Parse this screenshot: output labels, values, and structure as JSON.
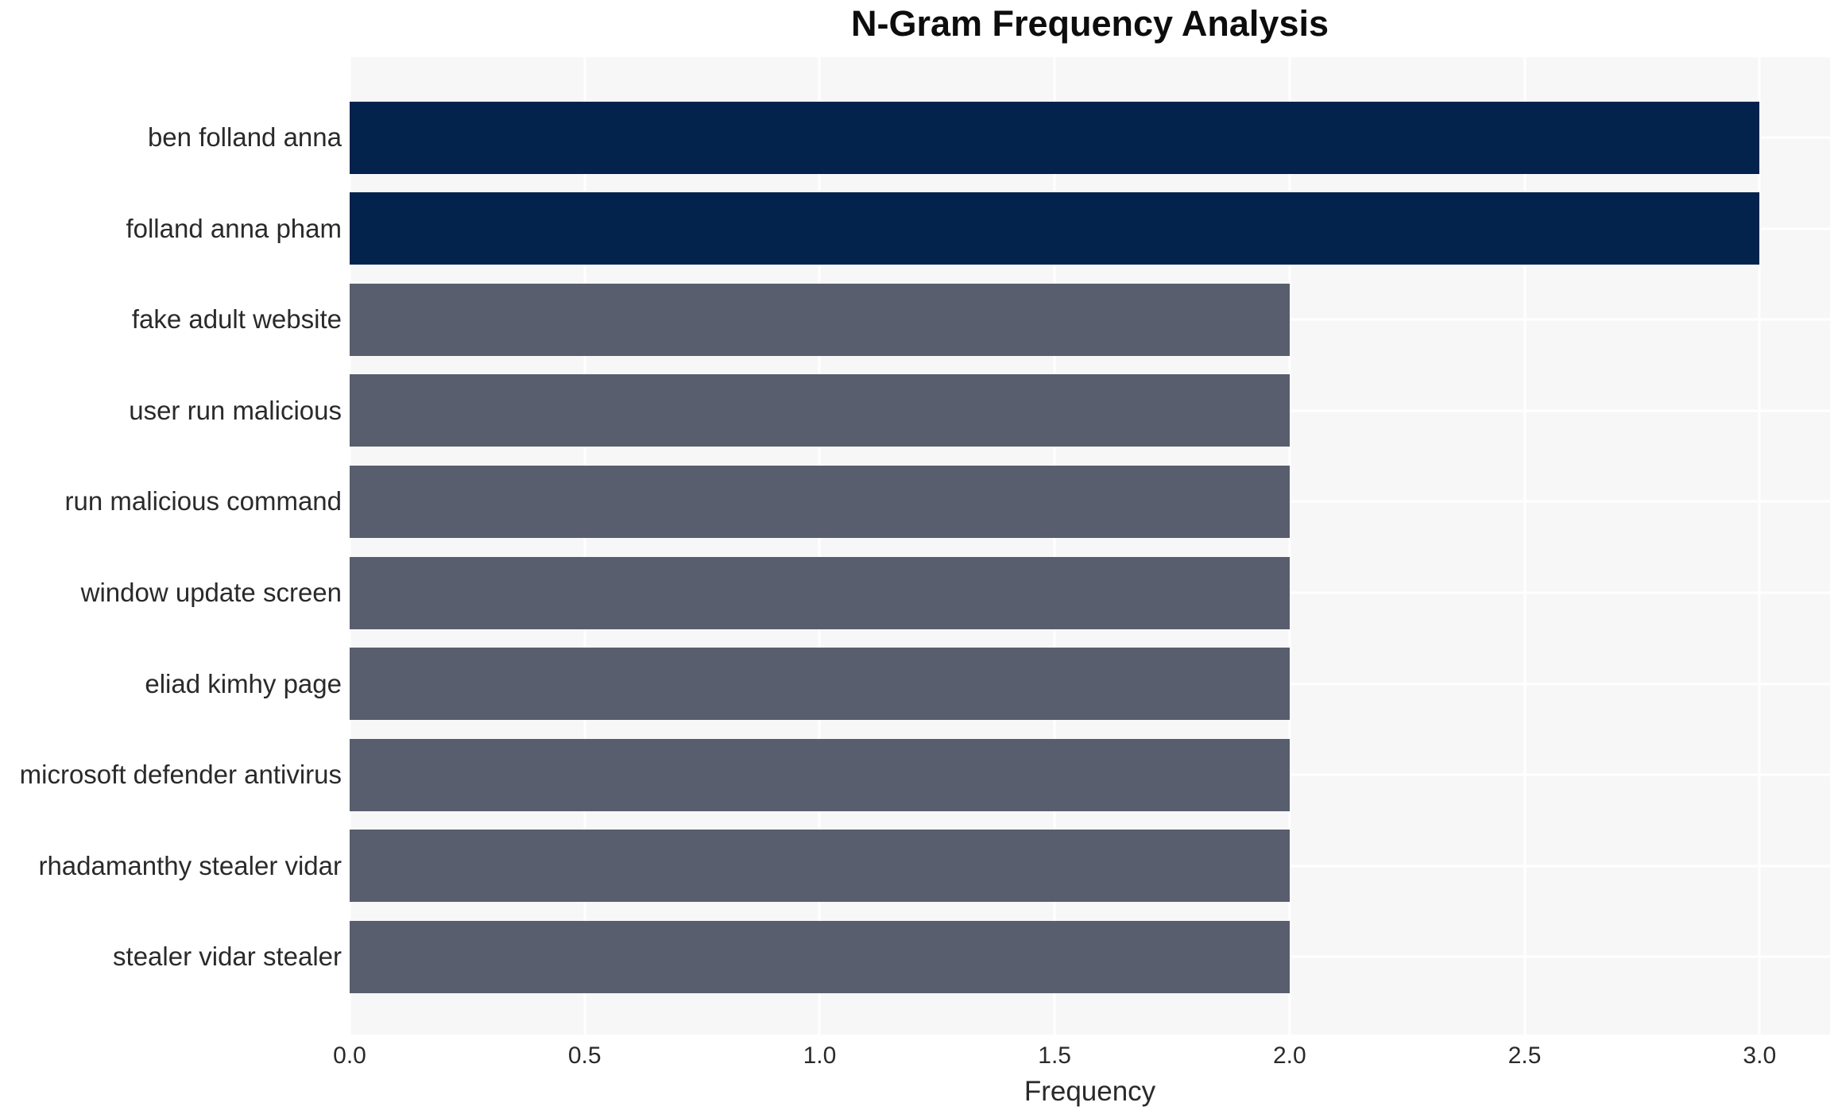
{
  "chart_data": {
    "type": "bar",
    "orientation": "horizontal",
    "title": "N-Gram Frequency Analysis",
    "xlabel": "Frequency",
    "ylabel": "",
    "categories": [
      "ben folland anna",
      "folland anna pham",
      "fake adult website",
      "user run malicious",
      "run malicious command",
      "window update screen",
      "eliad kimhy page",
      "microsoft defender antivirus",
      "rhadamanthy stealer vidar",
      "stealer vidar stealer"
    ],
    "values": [
      3,
      3,
      2,
      2,
      2,
      2,
      2,
      2,
      2,
      2
    ],
    "bar_colors": [
      "#03234d",
      "#03234d",
      "#585e6d",
      "#585e6d",
      "#585e6d",
      "#585e6d",
      "#585e6d",
      "#585e6d",
      "#585e6d",
      "#585e6d"
    ],
    "xticks": [
      "0.0",
      "0.5",
      "1.0",
      "1.5",
      "2.0",
      "2.5",
      "3.0"
    ],
    "xlim": [
      0,
      3.15
    ],
    "grid": "on",
    "grid_color": "#ffffff",
    "plot_background": "#f7f7f8",
    "figure_background": "#ffffff",
    "legend": "none"
  }
}
